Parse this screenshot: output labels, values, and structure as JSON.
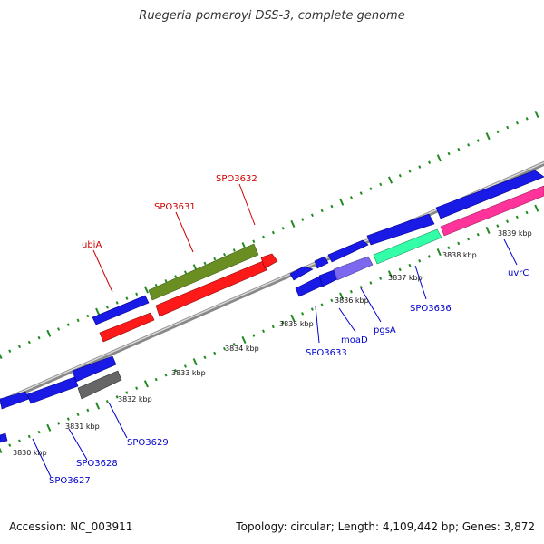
{
  "title": "Ruegeria pomeroyi DSS-3, complete genome",
  "footer": {
    "accession": "Accession: NC_003911",
    "summary": "Topology: circular; Length: 4,109,442 bp; Genes: 3,872"
  },
  "colors": {
    "forward_gene": "#1a1ae6",
    "reverse_gene": "#ff1a1a",
    "ubiquinone": "#6b8e23",
    "grey_gene": "#666666",
    "purple_gene": "#7b68ee",
    "green_gene": "#33ffa8",
    "pink_gene": "#ff3399",
    "backbone": "#999999",
    "ticks": "#228b22",
    "label_forward": "#0000cc",
    "label_reverse": "#cc0000"
  },
  "kbp_labels": [
    "3830 kbp",
    "3831 kbp",
    "3832 kbp",
    "3833 kbp",
    "3834 kbp",
    "3835 kbp",
    "3836 kbp",
    "3837 kbp",
    "3838 kbp",
    "3839 kbp"
  ],
  "gene_labels_top": [
    "ubiA",
    "SPO3631",
    "SPO3632"
  ],
  "gene_labels_bottom": [
    "SPO3627",
    "SPO3628",
    "SPO3629",
    "SPO3633",
    "moaD",
    "pgsA",
    "SPO3636",
    "uvrC"
  ]
}
